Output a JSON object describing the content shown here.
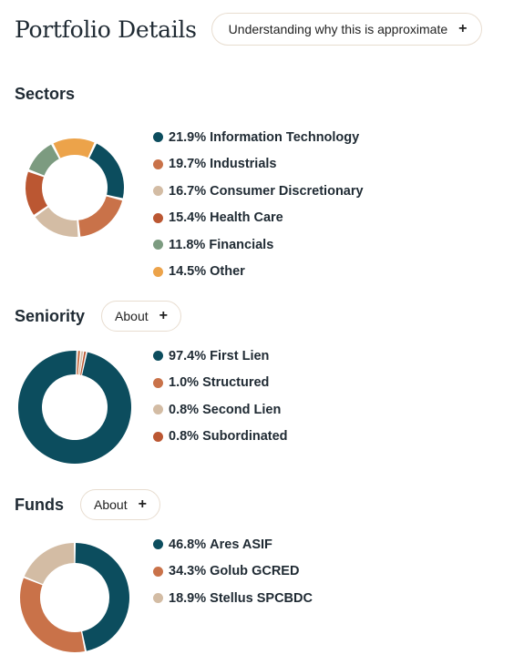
{
  "page": {
    "title": "Portfolio Details"
  },
  "header": {
    "info_button_label": "Understanding why this is approximate",
    "info_button_icon": "plus-icon"
  },
  "sectors": {
    "title": "Sectors",
    "items": [
      {
        "pct": "21.9%",
        "label": "Information Technology",
        "value": 21.9,
        "color": "#0c4d5e"
      },
      {
        "pct": "19.7%",
        "label": "Industrials",
        "value": 19.7,
        "color": "#c97249"
      },
      {
        "pct": "16.7%",
        "label": "Consumer Discretionary",
        "value": 16.7,
        "color": "#d3bca4"
      },
      {
        "pct": "15.4%",
        "label": "Health Care",
        "value": 15.4,
        "color": "#bb5732"
      },
      {
        "pct": "11.8%",
        "label": "Financials",
        "value": 11.8,
        "color": "#7c9b80"
      },
      {
        "pct": "14.5%",
        "label": "Other",
        "value": 14.5,
        "color": "#eca34a"
      }
    ]
  },
  "seniority": {
    "title": "Seniority",
    "about_label": "About",
    "items": [
      {
        "pct": "97.4%",
        "label": "First Lien",
        "value": 97.4,
        "color": "#0c4d5e"
      },
      {
        "pct": "1.0%",
        "label": "Structured",
        "value": 1.0,
        "color": "#c97249"
      },
      {
        "pct": "0.8%",
        "label": "Second Lien",
        "value": 0.8,
        "color": "#d3bca4"
      },
      {
        "pct": "0.8%",
        "label": "Subordinated",
        "value": 0.8,
        "color": "#bb5732"
      }
    ]
  },
  "funds": {
    "title": "Funds",
    "about_label": "About",
    "items": [
      {
        "pct": "46.8%",
        "label": "Ares ASIF",
        "value": 46.8,
        "color": "#0c4d5e"
      },
      {
        "pct": "34.3%",
        "label": "Golub GCRED",
        "value": 34.3,
        "color": "#c97249"
      },
      {
        "pct": "18.9%",
        "label": "Stellus SPCBDC",
        "value": 18.9,
        "color": "#d3bca4"
      }
    ]
  },
  "chart_data": [
    {
      "type": "pie",
      "title": "Sectors",
      "categories": [
        "Information Technology",
        "Industrials",
        "Consumer Discretionary",
        "Health Care",
        "Financials",
        "Other"
      ],
      "values": [
        21.9,
        19.7,
        16.7,
        15.4,
        11.8,
        14.5
      ],
      "colors": [
        "#0c4d5e",
        "#c97249",
        "#d3bca4",
        "#bb5732",
        "#7c9b80",
        "#eca34a"
      ],
      "donut": true,
      "legend": "right"
    },
    {
      "type": "pie",
      "title": "Seniority",
      "categories": [
        "First Lien",
        "Structured",
        "Second Lien",
        "Subordinated"
      ],
      "values": [
        97.4,
        1.0,
        0.8,
        0.8
      ],
      "colors": [
        "#0c4d5e",
        "#c97249",
        "#d3bca4",
        "#bb5732"
      ],
      "donut": true,
      "legend": "right"
    },
    {
      "type": "pie",
      "title": "Funds",
      "categories": [
        "Ares ASIF",
        "Golub GCRED",
        "Stellus SPCBDC"
      ],
      "values": [
        46.8,
        34.3,
        18.9
      ],
      "colors": [
        "#0c4d5e",
        "#c97249",
        "#d3bca4"
      ],
      "donut": true,
      "legend": "right"
    }
  ]
}
